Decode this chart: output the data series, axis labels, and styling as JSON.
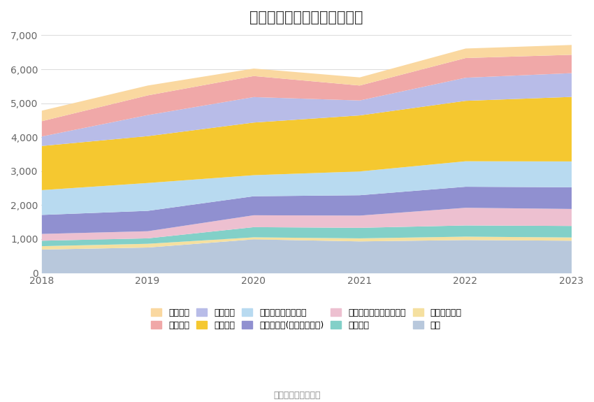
{
  "title": "历年主要负债堆积图（亿元）",
  "source": "数据来源：恒生聚源",
  "years": [
    2018,
    2019,
    2020,
    2021,
    2022,
    2023
  ],
  "series": [
    {
      "name": "其它",
      "color": "#b8c8dc",
      "values": [
        700,
        760,
        1000,
        940,
        980,
        960
      ]
    },
    {
      "name": "长期递延收益",
      "color": "#f5e0a0",
      "values": [
        100,
        110,
        60,
        90,
        100,
        95
      ]
    },
    {
      "name": "长期借款",
      "color": "#82d0c8",
      "values": [
        160,
        160,
        300,
        310,
        330,
        340
      ]
    },
    {
      "name": "一年内到期的非流动负债",
      "color": "#edc0d0",
      "values": [
        200,
        210,
        350,
        360,
        520,
        500
      ]
    },
    {
      "name": "其他应付款(含利息和股利)",
      "color": "#9090d0",
      "values": [
        560,
        600,
        560,
        600,
        620,
        640
      ]
    },
    {
      "name": "吸收存款及同业存款",
      "color": "#b8daf0",
      "values": [
        730,
        820,
        620,
        700,
        750,
        760
      ]
    },
    {
      "name": "应付账款",
      "color": "#f5c830",
      "values": [
        1300,
        1380,
        1550,
        1650,
        1780,
        1900
      ]
    },
    {
      "name": "应付票据",
      "color": "#b8bce8",
      "values": [
        280,
        620,
        750,
        440,
        680,
        700
      ]
    },
    {
      "name": "拆入资金",
      "color": "#f0a8a8",
      "values": [
        450,
        580,
        620,
        440,
        580,
        540
      ]
    },
    {
      "name": "短期借款",
      "color": "#fad8a0",
      "values": [
        310,
        290,
        220,
        240,
        280,
        290
      ]
    }
  ],
  "ylim": [
    0,
    7000
  ],
  "yticks": [
    0,
    1000,
    2000,
    3000,
    4000,
    5000,
    6000,
    7000
  ],
  "background_color": "#ffffff",
  "grid_color": "#dddddd",
  "title_fontsize": 15,
  "label_fontsize": 10,
  "legend_fontsize": 9
}
